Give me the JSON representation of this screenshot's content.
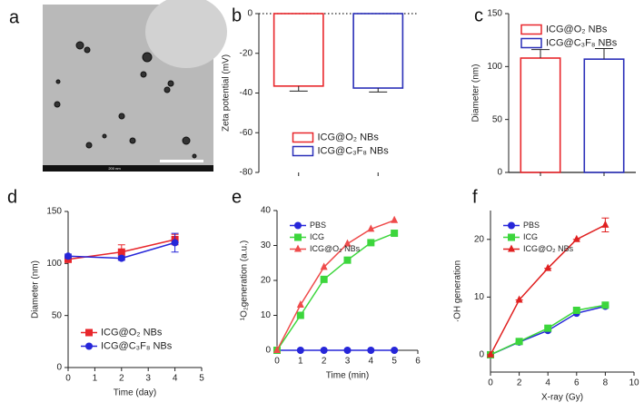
{
  "chart_data": [
    {
      "type": "image",
      "panel": "a",
      "scale_label": "200 nm"
    },
    {
      "type": "bar",
      "panel": "b",
      "ylabel": "Zeta potential (mV)",
      "ylim": [
        -80,
        0
      ],
      "yticks": [
        0,
        -20,
        -40,
        -60,
        -80
      ],
      "zero_line_style": "dotted",
      "legend": "lower center",
      "series": [
        {
          "name": "ICG@O₂ NBs",
          "color": "#e8262b",
          "values": [
            -36.5
          ],
          "errors": [
            2.5
          ]
        },
        {
          "name": "ICG@C₃F₈ NBs",
          "color": "#2a2fb8",
          "values": [
            -37.5
          ],
          "errors": [
            2
          ]
        }
      ]
    },
    {
      "type": "bar",
      "panel": "c",
      "ylabel": "Diameter (nm)",
      "ylim": [
        0,
        150
      ],
      "yticks": [
        0,
        50,
        100,
        150
      ],
      "legend": "upper left",
      "series": [
        {
          "name": "ICG@O₂ NBs",
          "color": "#e8262b",
          "values": [
            108
          ],
          "errors": [
            8
          ]
        },
        {
          "name": "ICG@C₃F₈ NBs",
          "color": "#2a2fb8",
          "values": [
            107
          ],
          "errors": [
            10
          ]
        }
      ]
    },
    {
      "type": "line",
      "panel": "d",
      "xlabel": "Time (day)",
      "ylabel": "Diameter (nm)",
      "x": [
        0,
        2,
        4
      ],
      "xlim": [
        0,
        5
      ],
      "xticks": [
        0,
        1,
        2,
        3,
        4,
        5
      ],
      "ylim": [
        0,
        150
      ],
      "yticks": [
        0,
        50,
        100,
        150
      ],
      "legend": "lower left",
      "series": [
        {
          "name": "ICG@O₂ NBs",
          "color": "#e8262b",
          "marker": "square",
          "values": [
            104,
            111,
            123
          ],
          "errors": [
            3,
            7,
            5
          ]
        },
        {
          "name": "ICG@C₃F₈ NBs",
          "color": "#2626d9",
          "marker": "circle",
          "values": [
            107,
            105,
            120
          ],
          "errors": [
            2,
            2,
            9
          ]
        }
      ]
    },
    {
      "type": "line",
      "panel": "e",
      "xlabel": "Time (min)",
      "ylabel": "¹O₂generation (a.u.)",
      "x": [
        0,
        1,
        2,
        3,
        4,
        5
      ],
      "xlim": [
        0,
        6
      ],
      "xticks": [
        0,
        1,
        2,
        3,
        4,
        5,
        6
      ],
      "ylim": [
        0,
        40
      ],
      "yticks": [
        0,
        10,
        20,
        30,
        40
      ],
      "legend": "upper left",
      "series": [
        {
          "name": "PBS",
          "color": "#2626d9",
          "marker": "circle",
          "values": [
            0,
            0,
            0,
            0,
            0,
            0
          ]
        },
        {
          "name": "ICG",
          "color": "#3cd63c",
          "marker": "square",
          "values": [
            0,
            10,
            20.3,
            25.8,
            30.8,
            33.5
          ]
        },
        {
          "name": "ICG@O₂ NBs",
          "color": "#ef4b4b",
          "marker": "triangle",
          "values": [
            0,
            13,
            23.8,
            30.5,
            34.7,
            37.2
          ]
        }
      ]
    },
    {
      "type": "line",
      "panel": "f",
      "xlabel": "X-ray (Gy)",
      "ylabel": "·OH generation",
      "x": [
        0,
        2,
        4,
        6,
        8
      ],
      "xlim": [
        0,
        10
      ],
      "xticks": [
        0,
        2,
        4,
        6,
        8,
        10
      ],
      "ylim": [
        -3,
        25
      ],
      "yticks": [
        0,
        10,
        20
      ],
      "legend": "upper left",
      "series": [
        {
          "name": "PBS",
          "color": "#2626d9",
          "marker": "circle",
          "values": [
            0,
            2.2,
            4.2,
            7.2,
            8.4
          ]
        },
        {
          "name": "ICG",
          "color": "#3cd63c",
          "marker": "square",
          "values": [
            0,
            2.3,
            4.6,
            7.7,
            8.6
          ]
        },
        {
          "name": "ICG@O₂ NBs",
          "color": "#e02020",
          "marker": "triangle",
          "values": [
            0,
            9.5,
            15,
            20,
            22.5
          ],
          "errors": [
            0,
            0,
            0,
            0,
            1.2
          ]
        }
      ]
    }
  ]
}
